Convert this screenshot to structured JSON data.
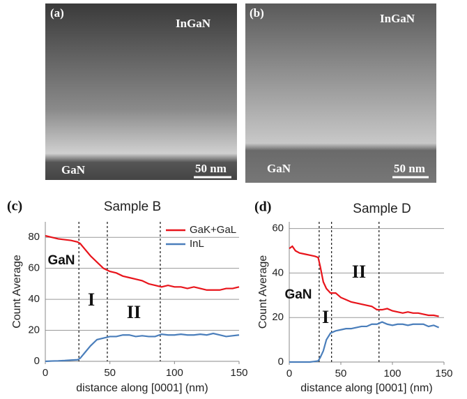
{
  "images": [
    {
      "label": "(a)",
      "top_label": "InGaN",
      "bottom_label": "GaN",
      "scale": "50 nm"
    },
    {
      "label": "(b)",
      "top_label": "InGaN",
      "bottom_label": "GaN",
      "scale": "50 nm"
    }
  ],
  "chart_data": [
    {
      "type": "line",
      "panel_label": "(c)",
      "title": "Sample B",
      "x_label": "distance along [0001] (nm)",
      "y_label": "Count Average",
      "xlim": [
        0,
        150
      ],
      "xticks": [
        0,
        50,
        100,
        150
      ],
      "ylim": [
        0,
        90
      ],
      "yticks": [
        0,
        20,
        40,
        60,
        80
      ],
      "grid": true,
      "legend": "upper right",
      "vlines": [
        26,
        48,
        89
      ],
      "annotations": [
        "GaN",
        "I",
        "II"
      ],
      "x": [
        0,
        5,
        10,
        15,
        20,
        25,
        27,
        30,
        35,
        40,
        45,
        50,
        55,
        60,
        65,
        70,
        75,
        80,
        85,
        90,
        95,
        100,
        105,
        110,
        115,
        120,
        125,
        130,
        135,
        140,
        145,
        150
      ],
      "series": [
        {
          "name": "GaK+GaL",
          "color": "#e8141b",
          "values": [
            81,
            80,
            79,
            78.5,
            78,
            77,
            76,
            73,
            68,
            64,
            60,
            58,
            57,
            55,
            54,
            53,
            52,
            50,
            49,
            48,
            49,
            48,
            48,
            47,
            48,
            47,
            46,
            46,
            46,
            47,
            47,
            48
          ]
        },
        {
          "name": "InL",
          "color": "#4a7ebb",
          "values": [
            0,
            0.2,
            0.3,
            0.5,
            0.8,
            1,
            2,
            5,
            10,
            14,
            15,
            16,
            16,
            17,
            17,
            16,
            16.5,
            16,
            16,
            17.5,
            17,
            17,
            17.5,
            17,
            17,
            17.5,
            17,
            18,
            17,
            16,
            16.5,
            17
          ]
        }
      ]
    },
    {
      "type": "line",
      "panel_label": "(d)",
      "title": "Sample D",
      "x_label": "distance along [0001] (nm)",
      "y_label": "Count Average",
      "xlim": [
        0,
        150
      ],
      "xticks": [
        0,
        50,
        100,
        150
      ],
      "ylim": [
        0,
        63
      ],
      "yticks": [
        0,
        20,
        40,
        60
      ],
      "grid": true,
      "vlines": [
        29,
        41,
        87
      ],
      "annotations": [
        "GaN",
        "I",
        "II"
      ],
      "x": [
        0,
        3,
        6,
        10,
        15,
        20,
        25,
        28,
        30,
        33,
        36,
        40,
        45,
        50,
        55,
        60,
        65,
        70,
        75,
        80,
        85,
        90,
        95,
        100,
        105,
        110,
        115,
        120,
        125,
        130,
        135,
        140,
        145
      ],
      "series": [
        {
          "color": "#e8141b",
          "values": [
            51,
            52,
            50,
            49,
            48.5,
            48,
            47.5,
            47,
            43,
            36,
            33,
            31,
            31,
            29,
            28,
            27,
            26.5,
            26,
            25.5,
            25,
            23.5,
            23.5,
            24,
            23,
            22.5,
            22,
            22.5,
            22,
            22,
            21.5,
            21,
            21,
            20.5
          ]
        },
        {
          "color": "#4a7ebb",
          "values": [
            0,
            0,
            0,
            0,
            0,
            0,
            0.3,
            0.5,
            2,
            5,
            10,
            13,
            14,
            14.5,
            15,
            15,
            15.5,
            16,
            16,
            17,
            17,
            18,
            17,
            16.5,
            17,
            17,
            16.5,
            17,
            17,
            17,
            16,
            16.5,
            15.5
          ]
        }
      ]
    }
  ]
}
